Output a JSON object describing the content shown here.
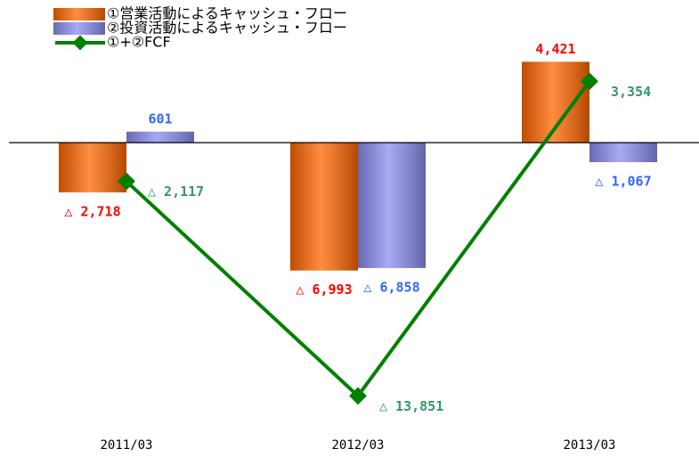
{
  "chart_data": {
    "type": "bar_line",
    "categories": [
      "2011/03",
      "2012/03",
      "2013/03"
    ],
    "series": [
      {
        "name": "①営業活動によるキャッシュ・フロー",
        "type": "bar",
        "color": "#ff6600",
        "label_color": "#ff0000",
        "values": [
          -2718,
          -6993,
          4421
        ],
        "value_labels": [
          "△ 2,718",
          "△ 6,993",
          "4,421"
        ]
      },
      {
        "name": "②投資活動によるキャッシュ・フロー",
        "type": "bar",
        "color": "#8c8cf0",
        "label_color": "#3366ff",
        "values": [
          601,
          -6858,
          -1067
        ],
        "value_labels": [
          "601",
          "△ 6,858",
          "△ 1,067"
        ]
      },
      {
        "name": "①+②FCF",
        "type": "line",
        "color": "#008000",
        "label_color": "#339966",
        "values": [
          -2117,
          -13851,
          3354
        ],
        "value_labels": [
          "△ 2,117",
          "△ 13,851",
          "3,354"
        ]
      }
    ],
    "ylim": [
      -15000,
      7800
    ],
    "grid": false
  }
}
